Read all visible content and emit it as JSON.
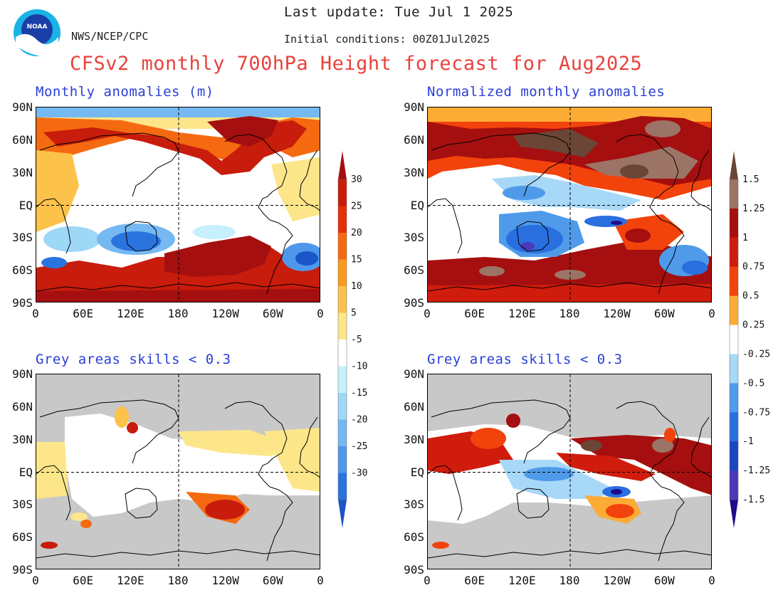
{
  "header": {
    "last_update": "Last update: Tue Jul 1 2025",
    "initial_conditions": "Initial conditions: 00Z01Jul2025",
    "agency": "NWS/NCEP/CPC",
    "title": "CFSv2 monthly 700hPa Height forecast for Aug2025",
    "logo_text": "NOAA"
  },
  "panels": {
    "top_left_title": "Monthly anomalies (m)",
    "top_right_title": "Normalized monthly anomalies",
    "bottom_left_title": "Grey areas skills < 0.3",
    "bottom_right_title": "Grey areas skills < 0.3"
  },
  "axes": {
    "lat": [
      "90N",
      "60N",
      "30N",
      "EQ",
      "30S",
      "60S",
      "90S"
    ],
    "lon": [
      "0",
      "60E",
      "120E",
      "180",
      "120W",
      "60W",
      "0"
    ]
  },
  "colorbar_left": {
    "labels": [
      "30",
      "25",
      "20",
      "15",
      "10",
      "5",
      "-5",
      "-10",
      "-15",
      "-20",
      "-25",
      "-30"
    ],
    "colors": [
      "#a50f0f",
      "#c81c0c",
      "#e6300a",
      "#f56a10",
      "#fa9a1e",
      "#fcc24a",
      "#fde68a",
      "#ffffff",
      "#c6f0fb",
      "#9ed8f7",
      "#76b9f2",
      "#4f97eb",
      "#2a74e0",
      "#1a56c8"
    ]
  },
  "colorbar_right": {
    "labels": [
      "1.5",
      "1.25",
      "1",
      "0.75",
      "0.5",
      "0.25",
      "-0.25",
      "-0.5",
      "-0.75",
      "-1",
      "-1.25",
      "-1.5"
    ],
    "colors": [
      "#6b4535",
      "#9c7466",
      "#a50f0f",
      "#d01c0c",
      "#f2430c",
      "#fcac35",
      "#ffffff",
      "#a8d8f8",
      "#4f9bea",
      "#2a6fe0",
      "#1847c0",
      "#4a3ab8",
      "#1d0c8a"
    ]
  },
  "colors": {
    "title_red": "#e8423c",
    "panel_blue": "#2a3fd6",
    "skill_grey": "#c8c8c8"
  }
}
